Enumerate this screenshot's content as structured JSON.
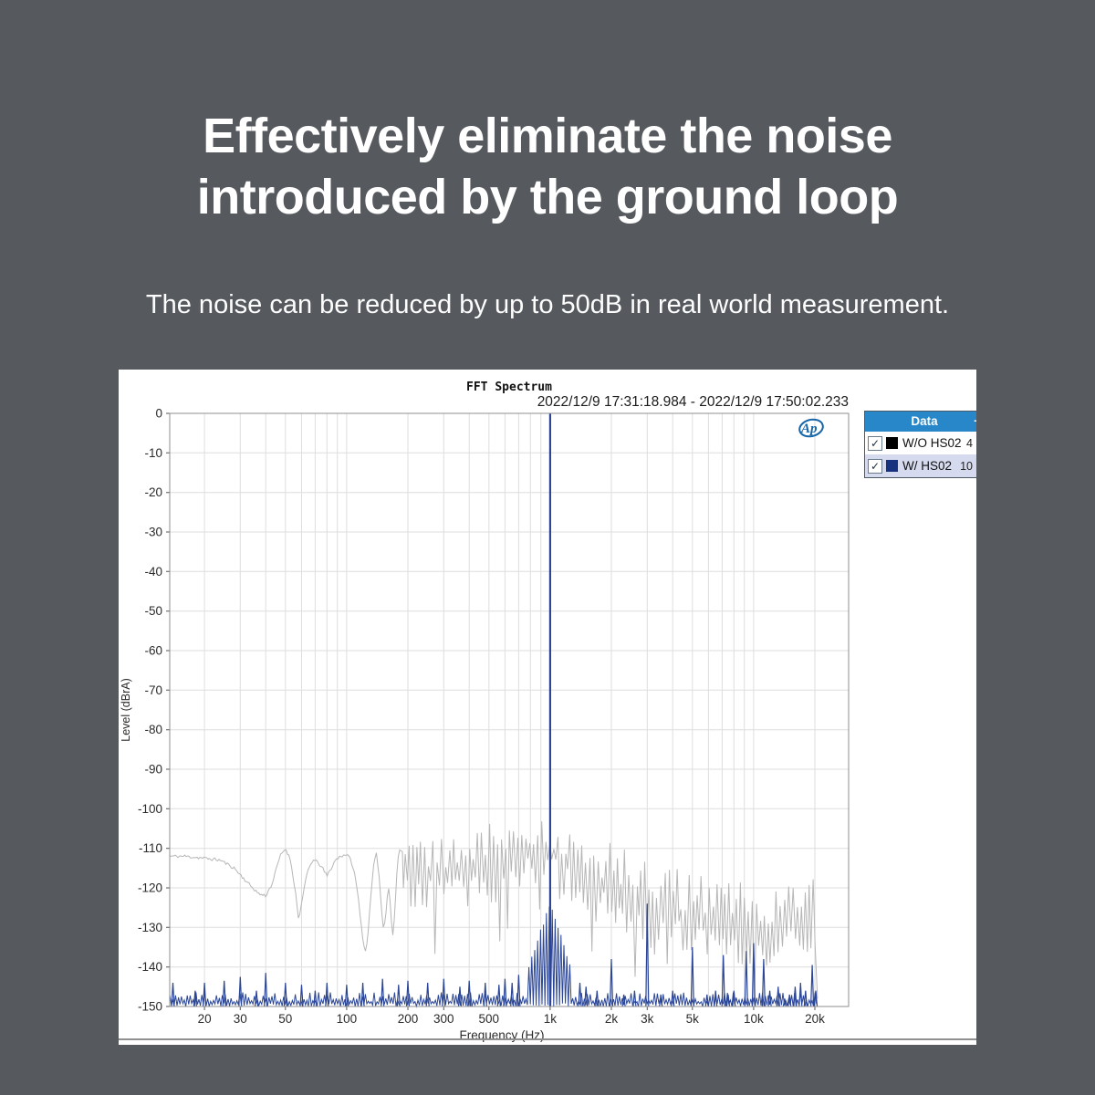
{
  "page": {
    "background": "#565a5f"
  },
  "headline": {
    "line1": "Effectively eliminate the noise",
    "line2": "introduced by the ground loop"
  },
  "subtitle": "The noise can be reduced by up to 50dB in real world measurement.",
  "chart_window": {
    "title": "FFT Spectrum",
    "timestamp": "2022/12/9 17:31:18.984 - 2022/12/9 17:50:02.233",
    "logo_text": "Ap",
    "legend": {
      "header": "Data",
      "header_plus": "+",
      "check_glyph": "✓",
      "rows": [
        {
          "checked": true,
          "swatch_color": "#000000",
          "label": "W/O HS02",
          "value": "4",
          "selected": false
        },
        {
          "checked": true,
          "swatch_color": "#16317d",
          "label": "W/ HS02",
          "value": "10",
          "selected": true
        }
      ]
    }
  },
  "colors": {
    "background": "#565a5f",
    "panel": "#ffffff",
    "legend_header": "#2787c8",
    "legend_selected_row": "#d5daee",
    "grid": "#dedede",
    "plot_border": "#8f8f8f",
    "axis_text": "#2b2b2b",
    "trace_gray": "#b6b6b6",
    "trace_blue": "#2b4697",
    "logo_blue": "#1565a8"
  },
  "chart_data": {
    "type": "line",
    "title": "FFT Spectrum",
    "xlabel": "Frequency (Hz)",
    "ylabel": "Level (dBrA)",
    "x_scale": "log",
    "xlim": [
      13.5,
      29300
    ],
    "ylim": [
      -150,
      0
    ],
    "y_tick_step": 10,
    "grid": true,
    "legend_position": "top-right-outside",
    "x_ticks": [
      {
        "v": 20,
        "label": "20"
      },
      {
        "v": 30,
        "label": "30"
      },
      {
        "v": 50,
        "label": "50"
      },
      {
        "v": 100,
        "label": "100"
      },
      {
        "v": 200,
        "label": "200"
      },
      {
        "v": 300,
        "label": "300"
      },
      {
        "v": 500,
        "label": "500"
      },
      {
        "v": 1000,
        "label": "1k"
      },
      {
        "v": 2000,
        "label": "2k"
      },
      {
        "v": 3000,
        "label": "3k"
      },
      {
        "v": 5000,
        "label": "5k"
      },
      {
        "v": 10000,
        "label": "10k"
      },
      {
        "v": 20000,
        "label": "20k"
      }
    ],
    "series": [
      {
        "name": "W/O HS02",
        "color": "#b6b6b6",
        "style": "noise-floor",
        "data_end_hz": 20400,
        "smooth_points": [
          [
            13.5,
            -112
          ],
          [
            16,
            -112
          ],
          [
            20,
            -112.5
          ],
          [
            24,
            -113
          ],
          [
            28,
            -115
          ],
          [
            33,
            -119
          ],
          [
            37,
            -121.5
          ],
          [
            40,
            -122
          ],
          [
            43,
            -119
          ],
          [
            47,
            -112
          ],
          [
            50,
            -110
          ],
          [
            53,
            -113
          ],
          [
            56,
            -121
          ],
          [
            58,
            -128
          ],
          [
            61,
            -122
          ],
          [
            64,
            -116
          ],
          [
            68,
            -113
          ],
          [
            72,
            -113.5
          ],
          [
            76,
            -115
          ],
          [
            80,
            -117
          ],
          [
            84,
            -115
          ],
          [
            88,
            -113
          ],
          [
            93,
            -112
          ],
          [
            100,
            -111.5
          ],
          [
            105,
            -113
          ],
          [
            110,
            -117
          ],
          [
            115,
            -124
          ],
          [
            120,
            -133
          ],
          [
            124,
            -136.5
          ],
          [
            128,
            -130
          ],
          [
            132,
            -121
          ],
          [
            136,
            -114
          ],
          [
            140,
            -111.5
          ],
          [
            144,
            -116
          ],
          [
            148,
            -125
          ],
          [
            152,
            -131
          ],
          [
            156,
            -126
          ],
          [
            160,
            -119
          ],
          [
            164,
            -124
          ],
          [
            168,
            -133
          ],
          [
            172,
            -127
          ],
          [
            176,
            -117
          ],
          [
            180,
            -111
          ],
          [
            185,
            -110.5
          ],
          [
            190,
            -111
          ]
        ],
        "noise_envelope": [
          [
            200,
            -117,
            9
          ],
          [
            250,
            -117,
            10
          ],
          [
            300,
            -117,
            10
          ],
          [
            350,
            -116,
            10
          ],
          [
            400,
            -115,
            10
          ],
          [
            500,
            -114,
            11
          ],
          [
            600,
            -112.5,
            10
          ],
          [
            700,
            -111.5,
            9
          ],
          [
            800,
            -110.5,
            9
          ],
          [
            900,
            -110.5,
            9
          ],
          [
            1000,
            -111,
            9
          ],
          [
            1100,
            -112,
            9
          ],
          [
            1300,
            -115,
            10
          ],
          [
            1600,
            -118,
            11
          ],
          [
            2000,
            -120,
            12
          ],
          [
            2500,
            -123,
            12
          ],
          [
            3000,
            -125,
            12
          ],
          [
            4000,
            -126.5,
            12
          ],
          [
            5000,
            -127.5,
            12
          ],
          [
            6000,
            -128,
            12
          ],
          [
            8000,
            -129.5,
            12
          ],
          [
            10000,
            -131,
            12
          ],
          [
            12000,
            -132,
            11
          ],
          [
            14000,
            -130,
            11
          ],
          [
            16000,
            -126.5,
            11
          ],
          [
            18000,
            -128,
            11
          ],
          [
            20000,
            -129,
            11
          ],
          [
            20400,
            -134,
            10
          ]
        ]
      },
      {
        "name": "W/ HS02",
        "color": "#2b4697",
        "style": "noise-floor-with-tone",
        "data_end_hz": 20400,
        "baseline_db": [
          -150,
          -146.5
        ],
        "main_tone": [
          1000,
          0
        ],
        "skirt": [
          [
            780,
            -141
          ],
          [
            800,
            -138.5
          ],
          [
            830,
            -136.5
          ],
          [
            860,
            -134
          ],
          [
            900,
            -131
          ],
          [
            940,
            -128.5
          ],
          [
            970,
            -126
          ],
          [
            990,
            -124.5
          ],
          [
            1000,
            -123.8
          ],
          [
            1010,
            -124.5
          ],
          [
            1030,
            -126
          ],
          [
            1060,
            -128
          ],
          [
            1100,
            -130.8
          ],
          [
            1150,
            -133.8
          ],
          [
            1200,
            -136.5
          ],
          [
            1250,
            -139.5
          ],
          [
            1290,
            -142
          ]
        ],
        "spikes": [
          [
            14,
            -144
          ],
          [
            18,
            -146
          ],
          [
            20,
            -144
          ],
          [
            25,
            -143.5
          ],
          [
            30,
            -142.5
          ],
          [
            36,
            -146
          ],
          [
            40,
            -141.5
          ],
          [
            50,
            -144
          ],
          [
            60,
            -144.5
          ],
          [
            70,
            -146
          ],
          [
            80,
            -144
          ],
          [
            100,
            -144.5
          ],
          [
            120,
            -144
          ],
          [
            150,
            -143
          ],
          [
            180,
            -144.5
          ],
          [
            200,
            -143.5
          ],
          [
            250,
            -144
          ],
          [
            300,
            -143
          ],
          [
            360,
            -145
          ],
          [
            400,
            -143.5
          ],
          [
            480,
            -144
          ],
          [
            560,
            -144.5
          ],
          [
            600,
            -143
          ],
          [
            650,
            -144
          ],
          [
            700,
            -142
          ],
          [
            1400,
            -144
          ],
          [
            1500,
            -145
          ],
          [
            1700,
            -146
          ],
          [
            2000,
            -138
          ],
          [
            2300,
            -147
          ],
          [
            2600,
            -146
          ],
          [
            3000,
            -124
          ],
          [
            3500,
            -147
          ],
          [
            4000,
            -146
          ],
          [
            5000,
            -135
          ],
          [
            5900,
            -147
          ],
          [
            6500,
            -146
          ],
          [
            7100,
            -137
          ],
          [
            7500,
            -147
          ],
          [
            8000,
            -146
          ],
          [
            9200,
            -136
          ],
          [
            10000,
            -134
          ],
          [
            11200,
            -138
          ],
          [
            12000,
            -146
          ],
          [
            13200,
            -145
          ],
          [
            14200,
            -148
          ],
          [
            15000,
            -147
          ],
          [
            16000,
            -145
          ],
          [
            17000,
            -144
          ],
          [
            18000,
            -146
          ],
          [
            19400,
            -139.5
          ],
          [
            20200,
            -146
          ]
        ]
      }
    ]
  }
}
